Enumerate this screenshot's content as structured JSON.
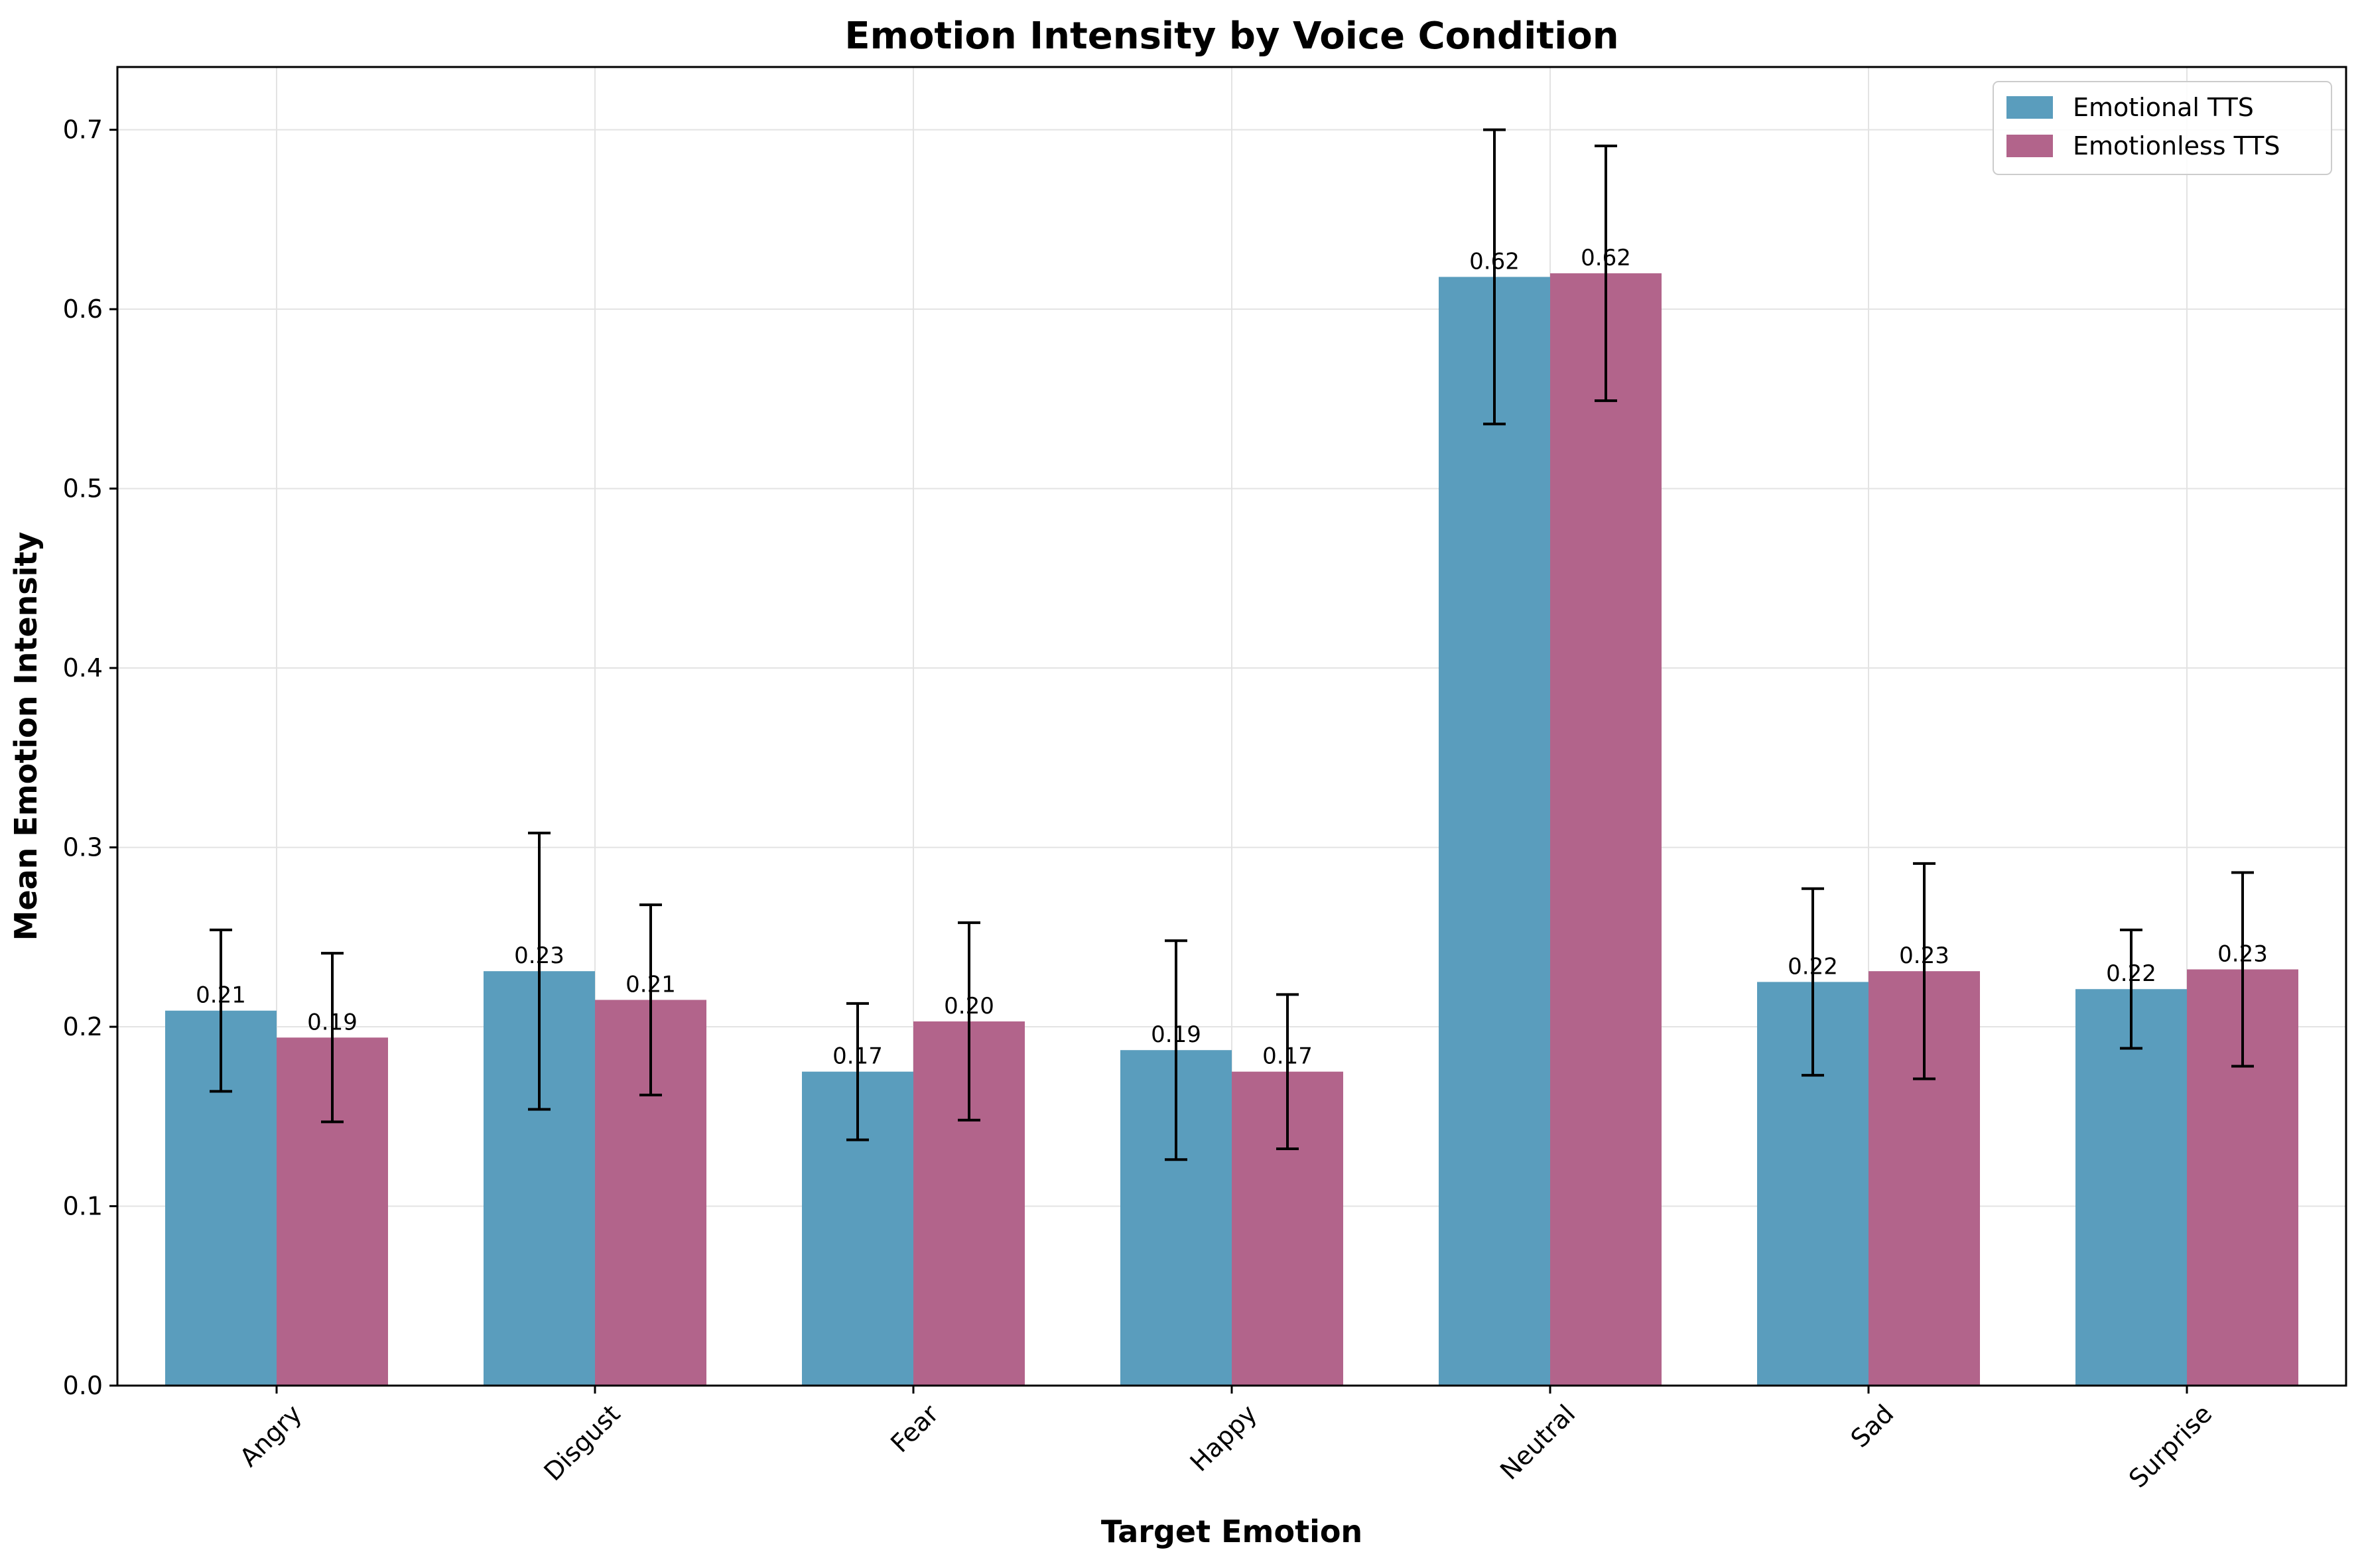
{
  "chart_data": {
    "type": "bar",
    "title": "Emotion Intensity by Voice Condition",
    "xlabel": "Target Emotion",
    "ylabel": "Mean Emotion Intensity",
    "categories": [
      "Angry",
      "Disgust",
      "Fear",
      "Happy",
      "Neutral",
      "Sad",
      "Surprise"
    ],
    "ylim": [
      0,
      0.735
    ],
    "yticks": [
      "0.0",
      "0.1",
      "0.2",
      "0.3",
      "0.4",
      "0.5",
      "0.6",
      "0.7"
    ],
    "grid": true,
    "legend_position": "top-right",
    "series": [
      {
        "name": "Emotional TTS",
        "color": "#5a9dbd",
        "values": [
          0.209,
          0.231,
          0.175,
          0.187,
          0.618,
          0.225,
          0.221
        ],
        "errors": [
          0.045,
          0.077,
          0.038,
          0.061,
          0.082,
          0.052,
          0.033
        ],
        "labels": [
          "0.21",
          "0.23",
          "0.17",
          "0.19",
          "0.62",
          "0.22",
          "0.22"
        ]
      },
      {
        "name": "Emotionless TTS",
        "color": "#b2648b",
        "values": [
          0.194,
          0.215,
          0.203,
          0.175,
          0.62,
          0.231,
          0.232
        ],
        "errors": [
          0.047,
          0.053,
          0.055,
          0.043,
          0.071,
          0.06,
          0.054
        ],
        "labels": [
          "0.19",
          "0.21",
          "0.20",
          "0.17",
          "0.62",
          "0.23",
          "0.23"
        ]
      }
    ]
  }
}
